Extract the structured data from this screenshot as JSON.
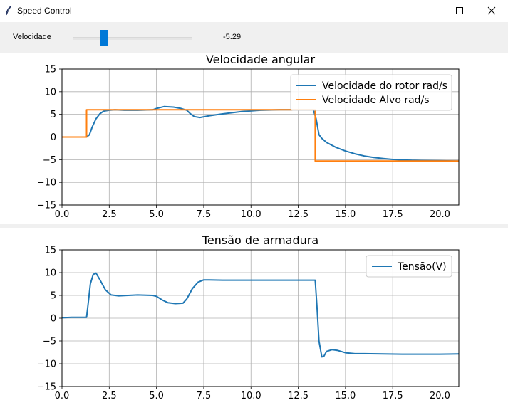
{
  "window": {
    "title": "Speed Control",
    "minimize_icon": "minimize-icon",
    "maximize_icon": "maximize-icon",
    "close_icon": "close-icon"
  },
  "controls": {
    "slider_label": "Velocidade",
    "slider_value": "-5.29",
    "slider_fraction": 0.24,
    "accent_color": "#0078d7"
  },
  "chart_data": [
    {
      "type": "line",
      "title": "Velocidade angular",
      "xlim": [
        0,
        21
      ],
      "ylim": [
        -15,
        15
      ],
      "xticks": [
        "0.0",
        "2.5",
        "5.0",
        "7.5",
        "10.0",
        "12.5",
        "15.0",
        "17.5",
        "20.0"
      ],
      "yticks": [
        "15",
        "10",
        "5",
        "0",
        "−5",
        "−10",
        "−15"
      ],
      "grid": true,
      "legend": "top-right",
      "series": [
        {
          "name": "Velocidade do rotor rad/s",
          "color": "#1f77b4",
          "x": [
            0,
            1.3,
            1.45,
            1.6,
            1.8,
            2.0,
            2.2,
            2.5,
            2.8,
            3.3,
            4.0,
            4.8,
            5.0,
            5.4,
            5.9,
            6.3,
            6.6,
            6.8,
            7.0,
            7.3,
            7.8,
            8.5,
            9.5,
            10.5,
            11.5,
            12.5,
            13.3,
            13.45,
            13.6,
            13.75,
            14.0,
            14.5,
            15.0,
            15.5,
            16.0,
            16.5,
            17.0,
            17.5,
            18.0,
            18.5,
            19.0,
            20.0,
            21.0
          ],
          "y": [
            0,
            0,
            0.5,
            2.2,
            4.0,
            5.1,
            5.7,
            5.9,
            6.0,
            5.9,
            5.9,
            6.0,
            6.3,
            6.7,
            6.6,
            6.3,
            5.9,
            5.1,
            4.5,
            4.3,
            4.7,
            5.1,
            5.6,
            5.9,
            6.0,
            6.0,
            6.0,
            4.0,
            0.5,
            -0.3,
            -1.2,
            -2.3,
            -3.1,
            -3.7,
            -4.2,
            -4.5,
            -4.75,
            -4.95,
            -5.05,
            -5.15,
            -5.2,
            -5.25,
            -5.29
          ]
        },
        {
          "name": "Velocidade Alvo rad/s",
          "color": "#ff7f0e",
          "x": [
            0,
            1.3,
            1.3,
            13.4,
            13.4,
            21.0
          ],
          "y": [
            0,
            0,
            6.0,
            6.0,
            -5.29,
            -5.29
          ]
        }
      ]
    },
    {
      "type": "line",
      "title": "Tensão de armadura",
      "xlim": [
        0,
        21
      ],
      "ylim": [
        -15,
        15
      ],
      "xticks": [
        "0.0",
        "2.5",
        "5.0",
        "7.5",
        "10.0",
        "12.5",
        "15.0",
        "17.5",
        "20.0"
      ],
      "yticks": [
        "15",
        "10",
        "5",
        "0",
        "−5",
        "−10",
        "−15"
      ],
      "grid": true,
      "legend": "top-right",
      "series": [
        {
          "name": "Tensão(V)",
          "color": "#1f77b4",
          "x": [
            0,
            0.5,
            1.3,
            1.38,
            1.5,
            1.65,
            1.8,
            2.0,
            2.3,
            2.6,
            3.0,
            3.5,
            4.0,
            4.8,
            5.0,
            5.3,
            5.6,
            6.0,
            6.4,
            6.6,
            6.9,
            7.2,
            7.5,
            7.8,
            8.5,
            9.5,
            10.5,
            11.5,
            12.5,
            13.4,
            13.5,
            13.6,
            13.75,
            13.85,
            14.0,
            14.3,
            14.6,
            15.0,
            15.5,
            16.0,
            17.0,
            18.0,
            19.0,
            20.0,
            21.0
          ],
          "y": [
            0.1,
            0.2,
            0.2,
            3.0,
            7.5,
            9.6,
            9.9,
            8.5,
            6.2,
            5.1,
            4.9,
            5.0,
            5.1,
            5.0,
            4.8,
            4.0,
            3.4,
            3.2,
            3.3,
            4.2,
            6.5,
            7.9,
            8.4,
            8.4,
            8.35,
            8.35,
            8.35,
            8.35,
            8.35,
            8.35,
            2.0,
            -5.0,
            -8.5,
            -8.4,
            -7.3,
            -6.9,
            -7.1,
            -7.6,
            -7.8,
            -7.8,
            -7.85,
            -7.9,
            -7.9,
            -7.9,
            -7.85
          ]
        }
      ]
    }
  ]
}
